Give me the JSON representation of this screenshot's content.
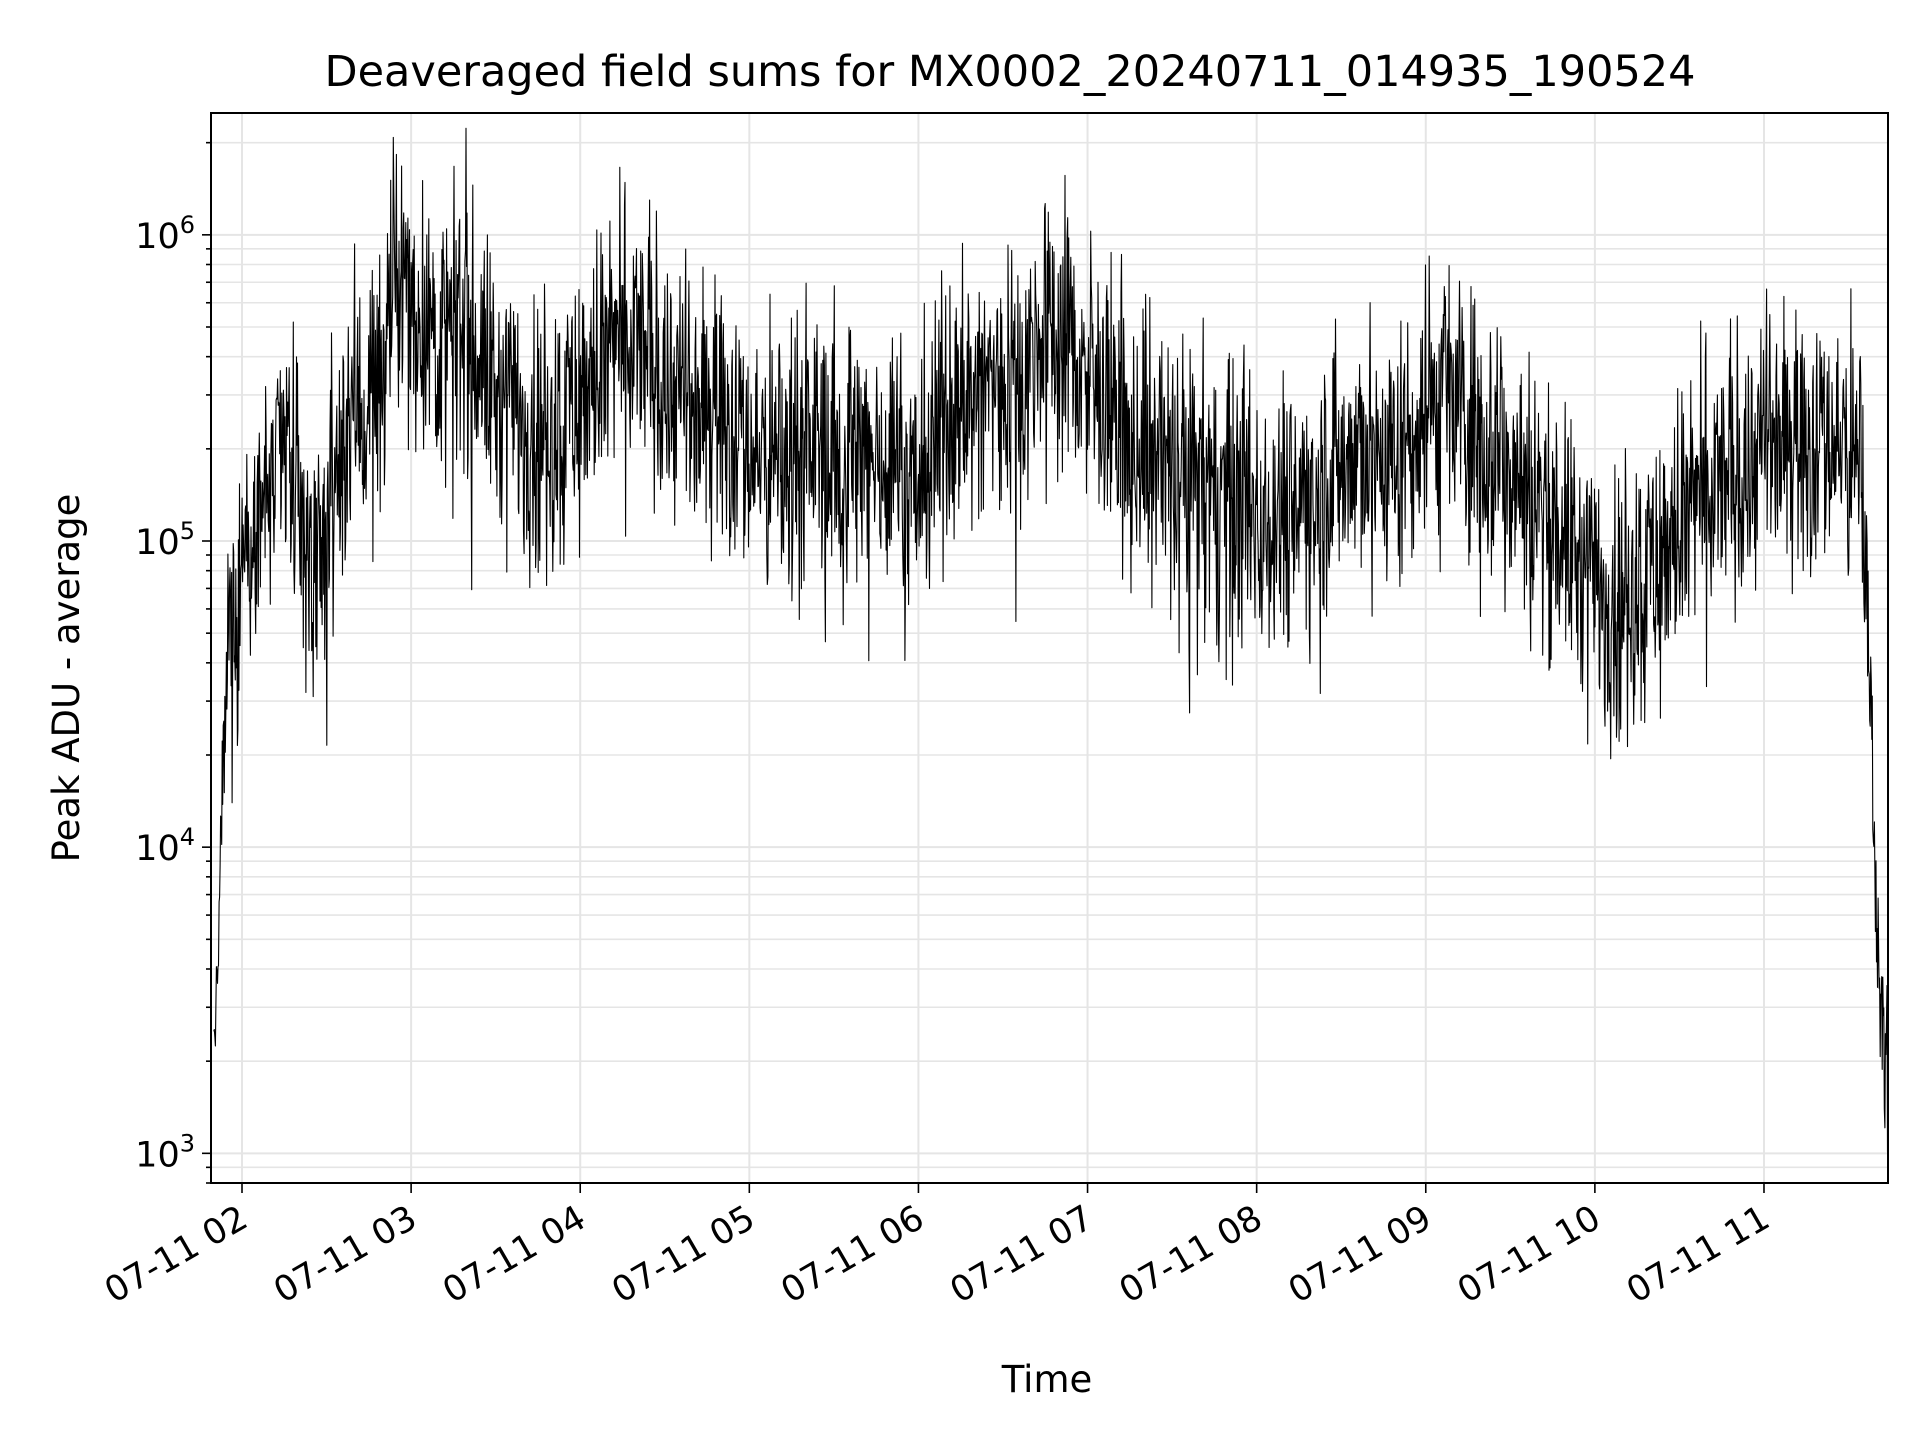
{
  "chart_data": {
    "type": "line",
    "title": "Deaveraged field sums for MX0002_20240711_014935_190524",
    "xlabel": "Time",
    "ylabel": "Peak ADU - average",
    "yscale": "log",
    "ylim": [
      800,
      2500000
    ],
    "xlim": [
      "2024-07-11 01:49",
      "2024-07-11 11:44"
    ],
    "x_ticks": [
      {
        "t": "2024-07-11 02:00",
        "label": "07-11 02"
      },
      {
        "t": "2024-07-11 03:00",
        "label": "07-11 03"
      },
      {
        "t": "2024-07-11 04:00",
        "label": "07-11 04"
      },
      {
        "t": "2024-07-11 05:00",
        "label": "07-11 05"
      },
      {
        "t": "2024-07-11 06:00",
        "label": "07-11 06"
      },
      {
        "t": "2024-07-11 07:00",
        "label": "07-11 07"
      },
      {
        "t": "2024-07-11 08:00",
        "label": "07-11 08"
      },
      {
        "t": "2024-07-11 09:00",
        "label": "07-11 09"
      },
      {
        "t": "2024-07-11 10:00",
        "label": "07-11 10"
      },
      {
        "t": "2024-07-11 11:00",
        "label": "07-11 11"
      }
    ],
    "y_ticks": [
      {
        "value": 1000,
        "base": "10",
        "exp": "3"
      },
      {
        "value": 10000,
        "base": "10",
        "exp": "4"
      },
      {
        "value": 100000,
        "base": "10",
        "exp": "5"
      },
      {
        "value": 1000000,
        "base": "10",
        "exp": "6"
      }
    ],
    "grid": true,
    "line_color": "#000000",
    "series": [
      {
        "x": [
          "2024-07-11 01:50",
          "2024-07-11 01:51",
          "2024-07-11 01:52",
          "2024-07-11 01:53",
          "2024-07-11 01:55",
          "2024-07-11 01:57",
          "2024-07-11 02:00",
          "2024-07-11 02:05",
          "2024-07-11 02:10",
          "2024-07-11 02:15",
          "2024-07-11 02:20",
          "2024-07-11 02:25",
          "2024-07-11 02:30",
          "2024-07-11 02:35",
          "2024-07-11 02:40",
          "2024-07-11 02:45",
          "2024-07-11 02:50",
          "2024-07-11 02:55",
          "2024-07-11 03:00",
          "2024-07-11 03:10",
          "2024-07-11 03:20",
          "2024-07-11 03:30",
          "2024-07-11 03:40",
          "2024-07-11 03:50",
          "2024-07-11 04:00",
          "2024-07-11 04:10",
          "2024-07-11 04:20",
          "2024-07-11 04:30",
          "2024-07-11 04:40",
          "2024-07-11 04:50",
          "2024-07-11 05:00",
          "2024-07-11 05:10",
          "2024-07-11 05:20",
          "2024-07-11 05:30",
          "2024-07-11 05:40",
          "2024-07-11 05:50",
          "2024-07-11 06:00",
          "2024-07-11 06:10",
          "2024-07-11 06:20",
          "2024-07-11 06:30",
          "2024-07-11 06:40",
          "2024-07-11 06:50",
          "2024-07-11 07:00",
          "2024-07-11 07:10",
          "2024-07-11 07:20",
          "2024-07-11 07:30",
          "2024-07-11 07:40",
          "2024-07-11 07:50",
          "2024-07-11 08:00",
          "2024-07-11 08:10",
          "2024-07-11 08:20",
          "2024-07-11 08:30",
          "2024-07-11 08:40",
          "2024-07-11 08:50",
          "2024-07-11 09:00",
          "2024-07-11 09:10",
          "2024-07-11 09:20",
          "2024-07-11 09:30",
          "2024-07-11 09:40",
          "2024-07-11 09:50",
          "2024-07-11 10:00",
          "2024-07-11 10:10",
          "2024-07-11 10:20",
          "2024-07-11 10:30",
          "2024-07-11 10:40",
          "2024-07-11 10:50",
          "2024-07-11 11:00",
          "2024-07-11 11:10",
          "2024-07-11 11:20",
          "2024-07-11 11:30",
          "2024-07-11 11:35",
          "2024-07-11 11:38",
          "2024-07-11 11:40",
          "2024-07-11 11:42",
          "2024-07-11 11:44"
        ],
        "y": [
          2000,
          3000,
          6000,
          15000,
          40000,
          60000,
          90000,
          130000,
          150000,
          200000,
          120000,
          90000,
          100000,
          200000,
          300000,
          250000,
          400000,
          700000,
          600000,
          450000,
          500000,
          300000,
          250000,
          220000,
          300000,
          400000,
          450000,
          350000,
          250000,
          300000,
          200000,
          180000,
          220000,
          200000,
          180000,
          200000,
          150000,
          250000,
          300000,
          350000,
          400000,
          500000,
          350000,
          220000,
          200000,
          180000,
          150000,
          140000,
          120000,
          130000,
          150000,
          180000,
          200000,
          180000,
          250000,
          300000,
          220000,
          180000,
          130000,
          100000,
          70000,
          65000,
          80000,
          110000,
          140000,
          170000,
          200000,
          220000,
          230000,
          200000,
          160000,
          30000,
          5000,
          3000,
          2000
        ]
      }
    ]
  }
}
